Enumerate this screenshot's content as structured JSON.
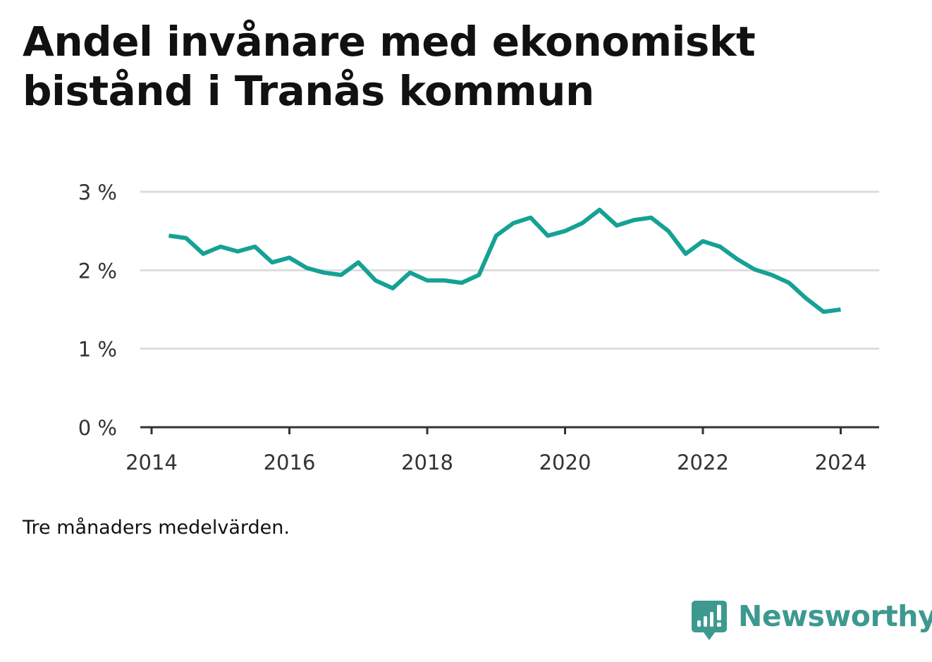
{
  "title": "Andel invånare med ekonomiskt bistånd i Tranås kommun",
  "note": "Tre månaders medelvärden.",
  "brand": {
    "name": "Newsworthy",
    "color": "#3d9990",
    "icon": "newsworthy-bar-chart-icon"
  },
  "colors": {
    "line": "#16a195",
    "grid": "#dddddd",
    "axis": "#333333"
  },
  "chart_data": {
    "type": "line",
    "title": "Andel invånare med ekonomiskt bistånd i Tranås kommun",
    "xlabel": "",
    "ylabel": "",
    "y_unit": "%",
    "xlim": [
      "2014-01-01",
      "2024-06-01"
    ],
    "ylim": [
      0,
      3
    ],
    "grid": true,
    "x_ticks": [
      "2014",
      "2016",
      "2018",
      "2020",
      "2022",
      "2024"
    ],
    "y_ticks": [
      "0 %",
      "1 %",
      "2 %",
      "3 %"
    ],
    "series": [
      {
        "x": [
          "2014-04",
          "2014-07",
          "2014-10",
          "2015-01",
          "2015-04",
          "2015-07",
          "2015-10",
          "2016-01",
          "2016-04",
          "2016-07",
          "2016-10",
          "2017-01",
          "2017-04",
          "2017-07",
          "2017-10",
          "2018-01",
          "2018-04",
          "2018-07",
          "2018-10",
          "2019-01",
          "2019-04",
          "2019-07",
          "2019-10",
          "2020-01",
          "2020-04",
          "2020-07",
          "2020-10",
          "2021-01",
          "2021-04",
          "2021-07",
          "2021-10",
          "2022-01",
          "2022-04",
          "2022-07",
          "2022-10",
          "2023-01",
          "2023-04",
          "2023-07",
          "2023-10",
          "2024-01"
        ],
        "values": [
          2.44,
          2.41,
          2.21,
          2.3,
          2.24,
          2.3,
          2.1,
          2.16,
          2.03,
          1.97,
          1.94,
          2.1,
          1.87,
          1.77,
          1.97,
          1.87,
          1.87,
          1.84,
          1.94,
          2.44,
          2.6,
          2.67,
          2.44,
          2.5,
          2.6,
          2.77,
          2.57,
          2.64,
          2.67,
          2.5,
          2.21,
          2.37,
          2.3,
          2.14,
          2.01,
          1.94,
          1.84,
          1.64,
          1.47,
          1.5
        ]
      }
    ]
  }
}
